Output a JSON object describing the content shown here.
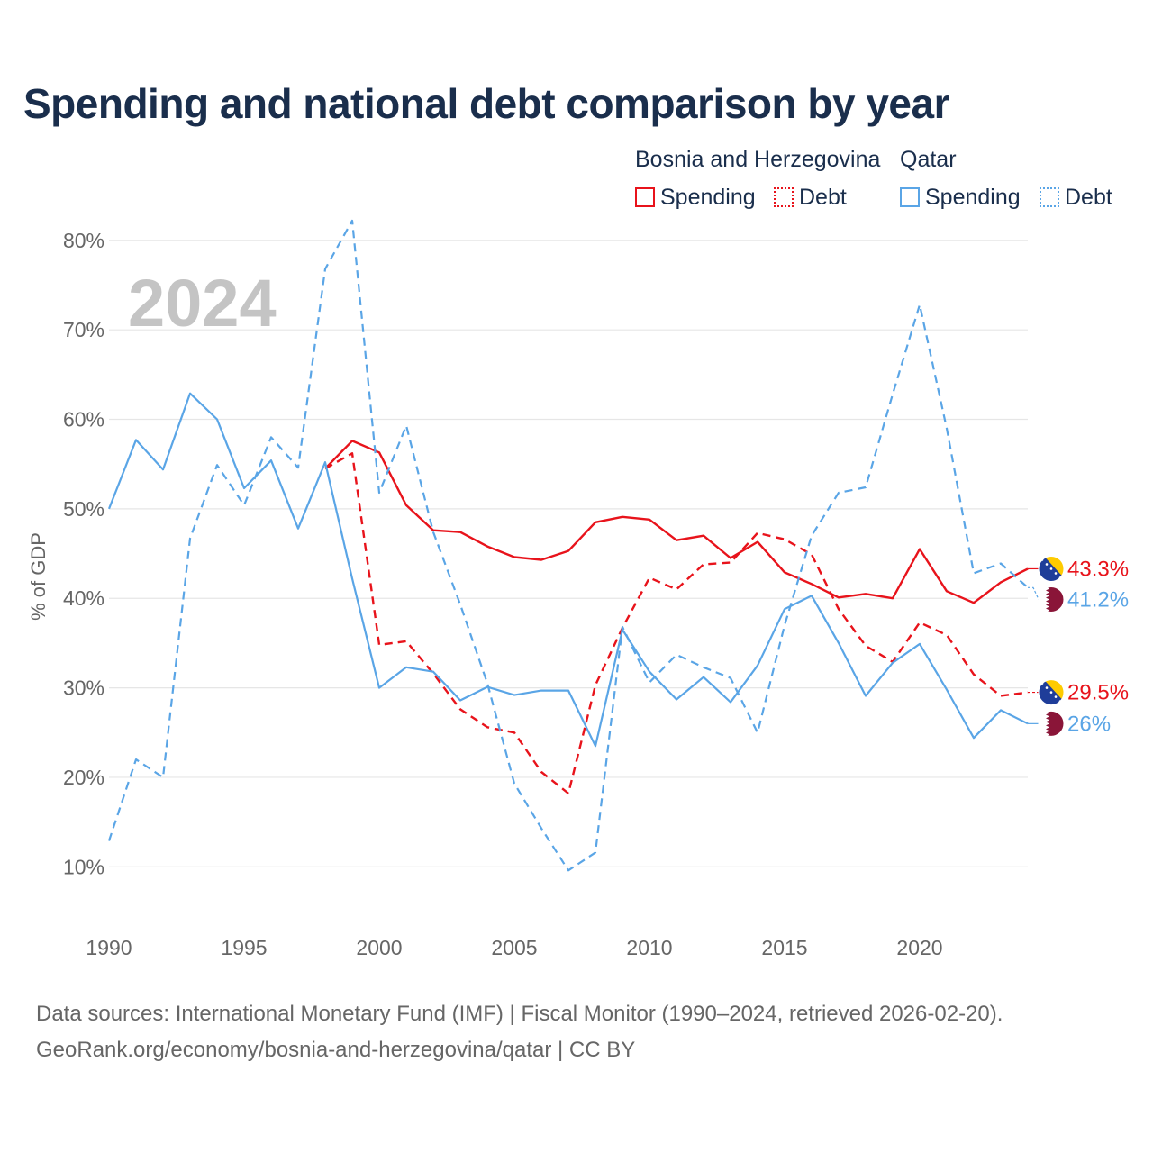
{
  "title": "Spending and national debt comparison by year",
  "legend": {
    "groups": [
      {
        "name": "Bosnia and Herzegovina",
        "color": "#e8131b",
        "items": [
          {
            "label": "Spending",
            "style": "solid"
          },
          {
            "label": "Debt",
            "style": "dotted"
          }
        ]
      },
      {
        "name": "Qatar",
        "color": "#5aa5e6",
        "items": [
          {
            "label": "Spending",
            "style": "solid"
          },
          {
            "label": "Debt",
            "style": "dotted"
          }
        ]
      }
    ]
  },
  "source": {
    "line1": "Data sources: International Monetary Fund (IMF) | Fiscal Monitor (1990–2024, retrieved 2026-02-20).",
    "line2": "GeoRank.org/economy/bosnia-and-herzegovina/qatar | CC BY"
  },
  "chart_data": {
    "type": "line",
    "title": "Spending and national debt comparison by year",
    "watermark_year": "2024",
    "ylabel": "% of GDP",
    "xlabel": "",
    "xlim": [
      1990,
      2024
    ],
    "ylim": [
      5,
      83
    ],
    "xticks": [
      1990,
      1995,
      2000,
      2005,
      2010,
      2015,
      2020
    ],
    "xtick_labels": [
      "1990",
      "1995",
      "2000",
      "2005",
      "2010",
      "2015",
      "2020"
    ],
    "yticks": [
      10,
      20,
      30,
      40,
      50,
      60,
      70,
      80
    ],
    "ytick_labels": [
      "10%",
      "20%",
      "30%",
      "40%",
      "50%",
      "60%",
      "70%",
      "80%"
    ],
    "grid": true,
    "series": [
      {
        "name": "Bosnia and Herzegovina Spending",
        "country": "Bosnia and Herzegovina",
        "metric": "Spending",
        "color": "#e8131b",
        "dash": "solid",
        "x": [
          1998,
          1999,
          2000,
          2001,
          2002,
          2003,
          2004,
          2005,
          2006,
          2007,
          2008,
          2009,
          2010,
          2011,
          2012,
          2013,
          2014,
          2015,
          2016,
          2017,
          2018,
          2019,
          2020,
          2021,
          2022,
          2023,
          2024
        ],
        "values": [
          54.5,
          57.6,
          56.3,
          50.4,
          47.6,
          47.4,
          45.8,
          44.6,
          44.3,
          45.3,
          48.5,
          49.1,
          48.8,
          46.5,
          47.0,
          44.5,
          46.3,
          42.9,
          41.6,
          40.1,
          40.5,
          40.0,
          45.5,
          40.8,
          39.5,
          41.8,
          43.3
        ],
        "end_label": "43.3%",
        "flag": "ba"
      },
      {
        "name": "Bosnia and Herzegovina Debt",
        "country": "Bosnia and Herzegovina",
        "metric": "Debt",
        "color": "#e8131b",
        "dash": "dashed",
        "x": [
          1998,
          1999,
          2000,
          2001,
          2002,
          2003,
          2004,
          2005,
          2006,
          2007,
          2008,
          2009,
          2010,
          2011,
          2012,
          2013,
          2014,
          2015,
          2016,
          2017,
          2018,
          2019,
          2020,
          2021,
          2022,
          2023,
          2024
        ],
        "values": [
          54.5,
          56.2,
          34.8,
          35.2,
          31.6,
          27.6,
          25.6,
          25.0,
          20.6,
          18.2,
          30.3,
          36.7,
          42.3,
          41.0,
          43.8,
          44.0,
          47.3,
          46.6,
          44.9,
          38.8,
          34.7,
          32.9,
          37.3,
          35.9,
          31.5,
          29.1,
          29.5
        ],
        "end_label": "29.5%",
        "flag": "ba"
      },
      {
        "name": "Qatar Spending",
        "country": "Qatar",
        "metric": "Spending",
        "color": "#5aa5e6",
        "dash": "solid",
        "x": [
          1990,
          1991,
          1992,
          1993,
          1994,
          1995,
          1996,
          1997,
          1998,
          1999,
          2000,
          2001,
          2002,
          2003,
          2004,
          2005,
          2006,
          2007,
          2008,
          2009,
          2010,
          2011,
          2012,
          2013,
          2014,
          2015,
          2016,
          2017,
          2018,
          2019,
          2020,
          2021,
          2022,
          2023,
          2024
        ],
        "values": [
          50.0,
          57.7,
          54.4,
          62.9,
          60.0,
          52.3,
          55.4,
          47.8,
          55.2,
          42.2,
          30.0,
          32.3,
          31.8,
          28.6,
          30.1,
          29.2,
          29.7,
          29.7,
          23.5,
          36.5,
          31.8,
          28.7,
          31.2,
          28.4,
          32.5,
          38.8,
          40.3,
          35.0,
          29.1,
          32.8,
          34.9,
          29.8,
          24.4,
          27.5,
          26.0
        ],
        "end_label": "26%",
        "flag": "qa"
      },
      {
        "name": "Qatar Debt",
        "country": "Qatar",
        "metric": "Debt",
        "color": "#5aa5e6",
        "dash": "dashed",
        "x": [
          1990,
          1991,
          1992,
          1993,
          1994,
          1995,
          1996,
          1997,
          1998,
          1999,
          2000,
          2001,
          2002,
          2003,
          2004,
          2005,
          2006,
          2007,
          2008,
          2009,
          2010,
          2011,
          2012,
          2013,
          2014,
          2015,
          2016,
          2017,
          2018,
          2019,
          2020,
          2021,
          2022,
          2023,
          2024
        ],
        "values": [
          12.9,
          22.0,
          20.0,
          46.7,
          54.9,
          50.4,
          58.0,
          54.6,
          76.8,
          82.2,
          51.8,
          59.3,
          47.4,
          39.3,
          30.5,
          19.3,
          14.3,
          9.6,
          11.6,
          36.8,
          30.6,
          33.7,
          32.3,
          31.1,
          25.0,
          37.0,
          47.0,
          51.8,
          52.4,
          62.8,
          72.8,
          59.0,
          42.8,
          43.9,
          41.2
        ],
        "end_label": "41.2%",
        "flag": "qa"
      }
    ]
  }
}
